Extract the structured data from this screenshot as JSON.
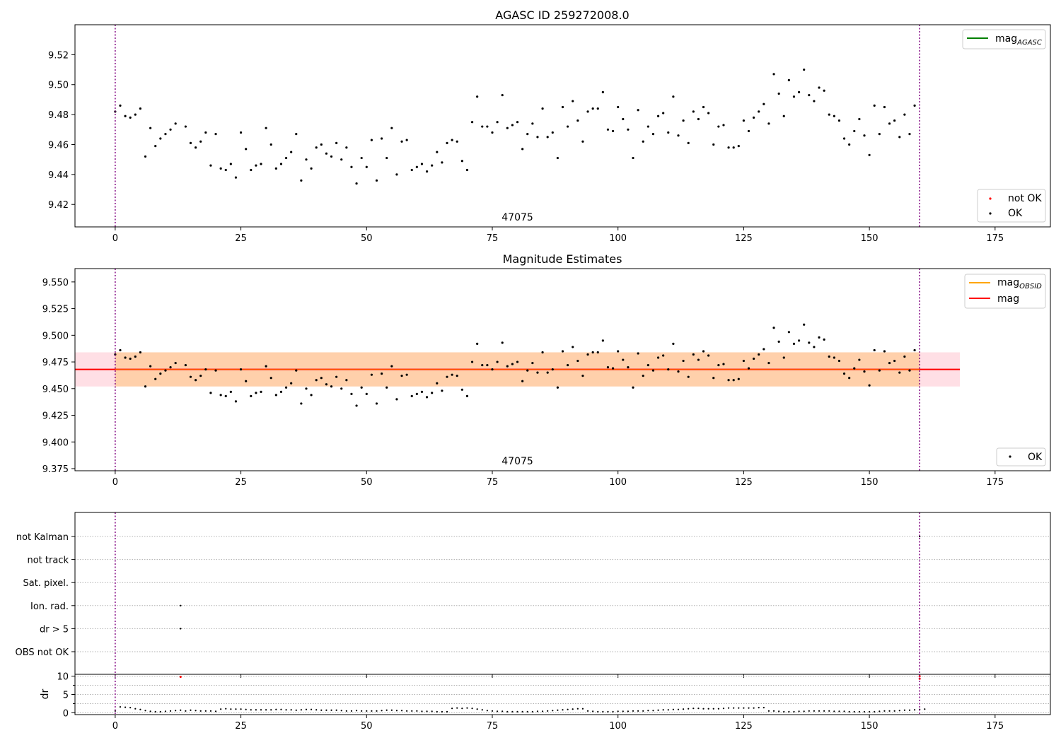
{
  "chart_data": [
    {
      "type": "scatter",
      "title": "AGASC ID 259272008.0",
      "xlim": [
        -8,
        186
      ],
      "ylim": [
        9.405,
        9.54
      ],
      "xticks": [
        "0",
        "25",
        "50",
        "75",
        "100",
        "125",
        "150",
        "175"
      ],
      "yticks": [
        "9.42",
        "9.44",
        "9.46",
        "9.48",
        "9.50",
        "9.52"
      ],
      "vlines": [
        0,
        160
      ],
      "annotation": "47075",
      "annotation_x": 80,
      "legend_line": {
        "label": "mag",
        "sub": "AGASC",
        "color": "#008000"
      },
      "legend_points": [
        {
          "label": "not OK",
          "color": "#ff0000"
        },
        {
          "label": "OK",
          "color": "#000000"
        }
      ],
      "series": [
        {
          "x": [
            0,
            1,
            2,
            3,
            4,
            5,
            6,
            7,
            8,
            9,
            10,
            11,
            12,
            14,
            15,
            16,
            17,
            18,
            19,
            20,
            21,
            22,
            23,
            24,
            25,
            26,
            27,
            28,
            29,
            30,
            31,
            32,
            33,
            34,
            35,
            36,
            37,
            38,
            39,
            40,
            41,
            42,
            43,
            44,
            45,
            46,
            47,
            48,
            49,
            50,
            51,
            52,
            53,
            54,
            55,
            56,
            57,
            58,
            59,
            60,
            61,
            62,
            63,
            64,
            65,
            66,
            67,
            68,
            69,
            70,
            71,
            72,
            73,
            74,
            75,
            76,
            77,
            78,
            79,
            80,
            81,
            82,
            83,
            84,
            85,
            86,
            87,
            88,
            89,
            90,
            91,
            92,
            93,
            94,
            95,
            96,
            97,
            98,
            99,
            100,
            101,
            102,
            103,
            104,
            105,
            106,
            107,
            108,
            109,
            110,
            111,
            112,
            113,
            114,
            115,
            116,
            117,
            118,
            119,
            120,
            121,
            122,
            123,
            124,
            125,
            126,
            127,
            128,
            129,
            130,
            131,
            132,
            133,
            134,
            135,
            136,
            137,
            138,
            139,
            140,
            141,
            142,
            143,
            144,
            145,
            146,
            147,
            148,
            149,
            150,
            151,
            152,
            153,
            154,
            155,
            156,
            157,
            158,
            159
          ],
          "y": [
            9.482,
            9.486,
            9.479,
            9.478,
            9.48,
            9.484,
            9.452,
            9.471,
            9.459,
            9.464,
            9.467,
            9.47,
            9.474,
            9.472,
            9.461,
            9.458,
            9.462,
            9.468,
            9.446,
            9.467,
            9.444,
            9.443,
            9.447,
            9.438,
            9.468,
            9.457,
            9.443,
            9.446,
            9.447,
            9.471,
            9.46,
            9.444,
            9.447,
            9.451,
            9.455,
            9.467,
            9.436,
            9.45,
            9.444,
            9.458,
            9.46,
            9.454,
            9.452,
            9.461,
            9.45,
            9.458,
            9.445,
            9.434,
            9.451,
            9.445,
            9.463,
            9.436,
            9.464,
            9.451,
            9.471,
            9.44,
            9.462,
            9.463,
            9.443,
            9.445,
            9.447,
            9.442,
            9.446,
            9.455,
            9.448,
            9.461,
            9.463,
            9.462,
            9.449,
            9.443,
            9.475,
            9.492,
            9.472,
            9.472,
            9.468,
            9.475,
            9.493,
            9.471,
            9.473,
            9.475,
            9.457,
            9.467,
            9.474,
            9.465,
            9.484,
            9.465,
            9.468,
            9.451,
            9.485,
            9.472,
            9.489,
            9.476,
            9.462,
            9.482,
            9.484,
            9.484,
            9.495,
            9.47,
            9.469,
            9.485,
            9.477,
            9.47,
            9.451,
            9.483,
            9.462,
            9.472,
            9.467,
            9.479,
            9.481,
            9.468,
            9.492,
            9.466,
            9.476,
            9.461,
            9.482,
            9.477,
            9.485,
            9.481,
            9.46,
            9.472,
            9.473,
            9.458,
            9.458,
            9.459,
            9.476,
            9.469,
            9.478,
            9.482,
            9.487,
            9.474,
            9.507,
            9.494,
            9.479,
            9.503,
            9.492,
            9.495,
            9.51,
            9.493,
            9.489,
            9.498,
            9.496,
            9.48,
            9.479,
            9.476,
            9.464,
            9.46,
            9.469,
            9.477,
            9.466,
            9.453,
            9.486,
            9.467,
            9.485,
            9.474,
            9.476,
            9.465,
            9.48,
            9.467,
            9.486
          ]
        }
      ]
    },
    {
      "type": "scatter",
      "title": "Magnitude Estimates",
      "xlim": [
        -8,
        186
      ],
      "ylim": [
        9.373,
        9.5625
      ],
      "xticks": [
        "0",
        "25",
        "50",
        "75",
        "100",
        "125",
        "150",
        "175"
      ],
      "yticks": [
        "9.375",
        "9.400",
        "9.425",
        "9.450",
        "9.475",
        "9.500",
        "9.525",
        "9.550"
      ],
      "vlines": [
        0,
        160
      ],
      "annotation": "47075",
      "annotation_x": 80,
      "mag_mean": 9.468,
      "band_low": 9.452,
      "band_high": 9.484,
      "band_x": [
        -8,
        168
      ],
      "band_inner_x": [
        0,
        160
      ],
      "legend_lines": [
        {
          "label": "mag",
          "sub": "OBSID",
          "color": "#ffa500"
        },
        {
          "label": "mag",
          "sub": "",
          "color": "#ff0000"
        }
      ],
      "legend_points": [
        {
          "label": "OK",
          "color": "#000000"
        }
      ]
    },
    {
      "type": "scatter",
      "title": "",
      "xlim": [
        -8,
        186
      ],
      "xticks": [
        "0",
        "25",
        "50",
        "75",
        "100",
        "125",
        "150",
        "175"
      ],
      "flag_labels": [
        "not Kalman",
        "not track",
        "Sat. pixel.",
        "Ion. rad.",
        "dr > 5",
        "OBS not OK"
      ],
      "flag_points": [
        {
          "x": 160,
          "flag": 0
        },
        {
          "x": 13,
          "flag": 3
        },
        {
          "x": 13,
          "flag": 4
        }
      ],
      "vlines": [
        0,
        160
      ],
      "dr_ylabel": "dr",
      "dr_ylim": [
        -0.5,
        10.5
      ],
      "dr_yticks": [
        "0",
        "5",
        "10"
      ],
      "dr_red_points": [
        {
          "x": 13,
          "y": 9.8
        },
        {
          "x": 160,
          "y": 10.0
        },
        {
          "x": 160,
          "y": 9.3
        }
      ],
      "dr_values": [
        0.5,
        1.6,
        1.5,
        1.4,
        1.1,
        0.9,
        0.6,
        0.4,
        0.3,
        0.3,
        0.4,
        0.5,
        0.6,
        0.7,
        0.5,
        0.7,
        0.6,
        0.5,
        0.5,
        0.5,
        0.4,
        1.0,
        1.1,
        1.0,
        1.0,
        1.0,
        0.9,
        0.8,
        0.8,
        0.8,
        0.8,
        0.8,
        0.9,
        0.9,
        0.8,
        0.8,
        0.7,
        0.8,
        0.9,
        0.9,
        0.8,
        0.7,
        0.7,
        0.7,
        0.7,
        0.6,
        0.5,
        0.5,
        0.6,
        0.5,
        0.5,
        0.5,
        0.5,
        0.6,
        0.7,
        0.7,
        0.6,
        0.6,
        0.5,
        0.5,
        0.5,
        0.4,
        0.4,
        0.4,
        0.3,
        0.3,
        0.3,
        1.2,
        1.3,
        1.2,
        1.3,
        1.2,
        1.0,
        0.8,
        0.6,
        0.5,
        0.4,
        0.4,
        0.3,
        0.3,
        0.3,
        0.3,
        0.3,
        0.3,
        0.4,
        0.4,
        0.5,
        0.6,
        0.7,
        0.8,
        0.9,
        1.0,
        1.1,
        1.1,
        0.5,
        0.4,
        0.3,
        0.3,
        0.3,
        0.3,
        0.4,
        0.4,
        0.4,
        0.5,
        0.5,
        0.5,
        0.6,
        0.6,
        0.7,
        0.8,
        0.8,
        0.9,
        0.9,
        1.0,
        1.1,
        1.2,
        1.2,
        1.1,
        1.1,
        1.1,
        1.1,
        1.2,
        1.3,
        1.3,
        1.3,
        1.3,
        1.3,
        1.3,
        1.4,
        1.4,
        0.5,
        0.5,
        0.4,
        0.3,
        0.3,
        0.3,
        0.4,
        0.4,
        0.5,
        0.5,
        0.5,
        0.5,
        0.5,
        0.4,
        0.4,
        0.4,
        0.3,
        0.3,
        0.3,
        0.3,
        0.3,
        0.3,
        0.4,
        0.5,
        0.5,
        0.5,
        0.6,
        0.7,
        0.7,
        0.8,
        0.9,
        1.0
      ]
    }
  ]
}
